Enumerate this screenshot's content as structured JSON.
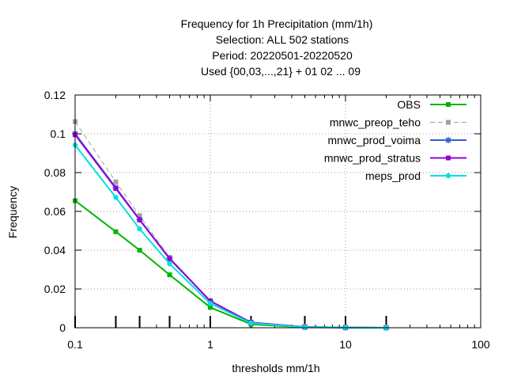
{
  "chart_data": {
    "type": "line",
    "title_lines": [
      "Frequency  for 1h Precipitation (mm/1h)",
      "Selection: ALL    502 stations",
      "Period: 20220501-20220520",
      "Used {00,03,...,21} + 01 02 ... 09"
    ],
    "xlabel": "thresholds mm/1h",
    "ylabel": "Frequency",
    "x_scale": "log",
    "xlim": [
      0.1,
      100
    ],
    "ylim": [
      0,
      0.12
    ],
    "x_ticks": [
      0.1,
      1,
      10,
      100
    ],
    "x_tick_labels": [
      "0.1",
      "1",
      "10",
      "100"
    ],
    "y_ticks": [
      0,
      0.02,
      0.04,
      0.06,
      0.08,
      0.1,
      0.12
    ],
    "y_tick_labels": [
      "0",
      "0.02",
      "0.04",
      "0.06",
      "0.08",
      "0.1",
      "0.12"
    ],
    "threshold_marks": [
      0.1,
      0.2,
      0.3,
      0.5,
      1,
      2,
      5,
      10,
      20
    ],
    "grid": true,
    "legend_position": "top-right",
    "x": [
      0.1,
      0.2,
      0.3,
      0.5,
      1,
      2,
      5,
      10,
      20
    ],
    "series": [
      {
        "name": "OBS",
        "color": "#00b400",
        "dash": false,
        "marker": "square",
        "values": [
          0.0655,
          0.0495,
          0.04,
          0.0273,
          0.0105,
          0.0018,
          0.0002,
          0.0001,
          0.0
        ]
      },
      {
        "name": "mnwc_preop_teho",
        "color": "#a0a0a0",
        "dash": true,
        "marker": "square",
        "values": [
          0.1063,
          0.0752,
          0.0578,
          0.0362,
          0.0138,
          0.0027,
          0.0004,
          0.0001,
          0.0
        ]
      },
      {
        "name": "mnwc_prod_voima",
        "color": "#3060d0",
        "dash": false,
        "marker": "star",
        "values": [
          0.1,
          0.0722,
          0.0558,
          0.0358,
          0.0138,
          0.0027,
          0.0004,
          0.0001,
          0.0
        ]
      },
      {
        "name": "mnwc_prod_stratus",
        "color": "#9400d3",
        "dash": false,
        "marker": "square",
        "values": [
          0.0995,
          0.0718,
          0.0556,
          0.0356,
          0.0137,
          0.0027,
          0.0004,
          0.0001,
          0.0
        ]
      },
      {
        "name": "meps_prod",
        "color": "#00e0e0",
        "dash": false,
        "marker": "circle",
        "values": [
          0.0942,
          0.0672,
          0.051,
          0.033,
          0.0125,
          0.0024,
          0.0003,
          0.0001,
          0.0
        ]
      }
    ]
  }
}
